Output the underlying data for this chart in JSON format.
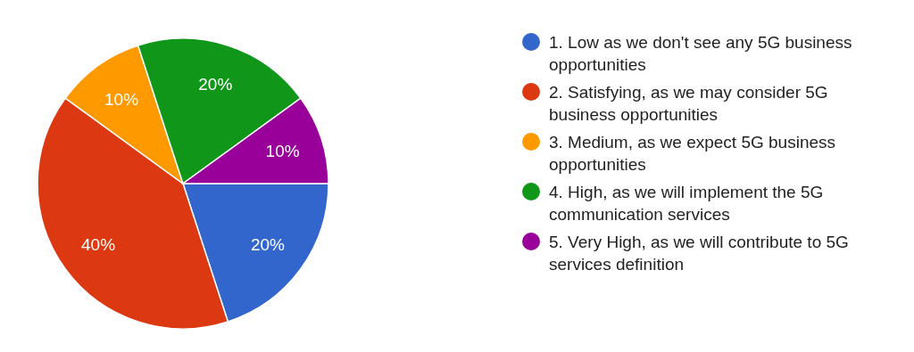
{
  "chart_data": {
    "type": "pie",
    "categories": [
      "1. Low as we don't see any 5G business opportunities",
      "2. Satisfying, as we may consider 5G business opportunities",
      "3. Medium, as we expect 5G business opportunities",
      "4. High, as we will implement the 5G communication services",
      "5. Very High, as we will contribute to 5G services definition"
    ],
    "values": [
      20,
      40,
      10,
      20,
      10
    ],
    "value_labels": [
      "20%",
      "40%",
      "10%",
      "20%",
      "10%"
    ],
    "colors": [
      "#3366cc",
      "#dc3912",
      "#ff9900",
      "#109618",
      "#990099"
    ],
    "legend": "right"
  }
}
